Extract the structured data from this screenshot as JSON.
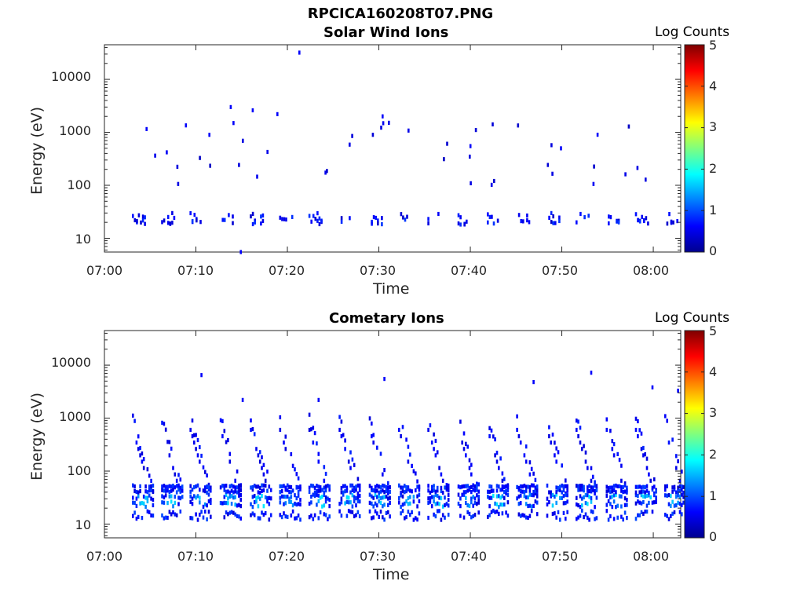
{
  "figure": {
    "title": "RPCICA160208T07.PNG"
  },
  "colormap": {
    "label": "Log Counts",
    "ticks": [
      "0",
      "1",
      "2",
      "3",
      "4",
      "5"
    ],
    "range": [
      0,
      5
    ],
    "stops": [
      "#00008f",
      "#0000ff",
      "#007fff",
      "#00ffff",
      "#7fff7f",
      "#ffff00",
      "#ff7f00",
      "#ff0000",
      "#7f0000"
    ]
  },
  "chart_data": [
    {
      "type": "heatmap",
      "title": "Solar Wind Ions",
      "xlabel": "Time",
      "ylabel": "Energy (eV)",
      "x_ticks": [
        "07:00",
        "07:10",
        "07:20",
        "07:30",
        "07:40",
        "07:50",
        "08:00"
      ],
      "y_ticks": [
        "10",
        "100",
        "1000",
        "10000"
      ],
      "y_scale": "log",
      "ylim": [
        5.5,
        45000
      ],
      "xlim_minutes": [
        0,
        63
      ],
      "colorbar": "Log Counts",
      "sweep_start_minutes": [
        3.0,
        6.2,
        9.3,
        12.6,
        15.9,
        19.1,
        22.3,
        25.6,
        28.9,
        32.1,
        35.3,
        38.6,
        41.8,
        45.0,
        48.3,
        51.5,
        54.8,
        58.0,
        61.2
      ],
      "isolated_hits": [
        {
          "t": 21.2,
          "e": 32000
        },
        {
          "t": 13.7,
          "e": 3000
        },
        {
          "t": 16.1,
          "e": 2600
        },
        {
          "t": 18.8,
          "e": 2200
        },
        {
          "t": 30.3,
          "e": 2000
        },
        {
          "t": 4.5,
          "e": 1150
        },
        {
          "t": 8.8,
          "e": 1350
        },
        {
          "t": 14.0,
          "e": 1500
        },
        {
          "t": 39.9,
          "e": 550
        },
        {
          "t": 49.8,
          "e": 500
        },
        {
          "t": 53.8,
          "e": 900
        },
        {
          "t": 14.8,
          "e": 5.5
        }
      ],
      "value_range_log_counts": [
        0.3,
        0.9
      ]
    },
    {
      "type": "heatmap",
      "title": "Cometary Ions",
      "xlabel": "Time",
      "ylabel": "Energy (eV)",
      "x_ticks": [
        "07:00",
        "07:10",
        "07:20",
        "07:30",
        "07:40",
        "07:50",
        "08:00"
      ],
      "y_ticks": [
        "10",
        "100",
        "1000",
        "10000"
      ],
      "y_scale": "log",
      "ylim": [
        5.5,
        45000
      ],
      "xlim_minutes": [
        0,
        63
      ],
      "colorbar": "Log Counts",
      "sweep_start_minutes": [
        3.0,
        6.2,
        9.3,
        12.6,
        15.9,
        19.1,
        22.3,
        25.6,
        28.9,
        32.1,
        35.3,
        38.6,
        41.8,
        45.0,
        48.3,
        51.5,
        54.8,
        58.0,
        61.2
      ],
      "isolated_hits": [
        {
          "t": 10.5,
          "e": 6500
        },
        {
          "t": 30.5,
          "e": 5500
        },
        {
          "t": 53.1,
          "e": 7200
        },
        {
          "t": 46.8,
          "e": 4800
        },
        {
          "t": 59.8,
          "e": 3800
        },
        {
          "t": 62.6,
          "e": 3300
        },
        {
          "t": 15.0,
          "e": 2200
        },
        {
          "t": 23.3,
          "e": 2200
        }
      ],
      "value_range_log_counts": [
        0.3,
        1.8
      ]
    }
  ]
}
